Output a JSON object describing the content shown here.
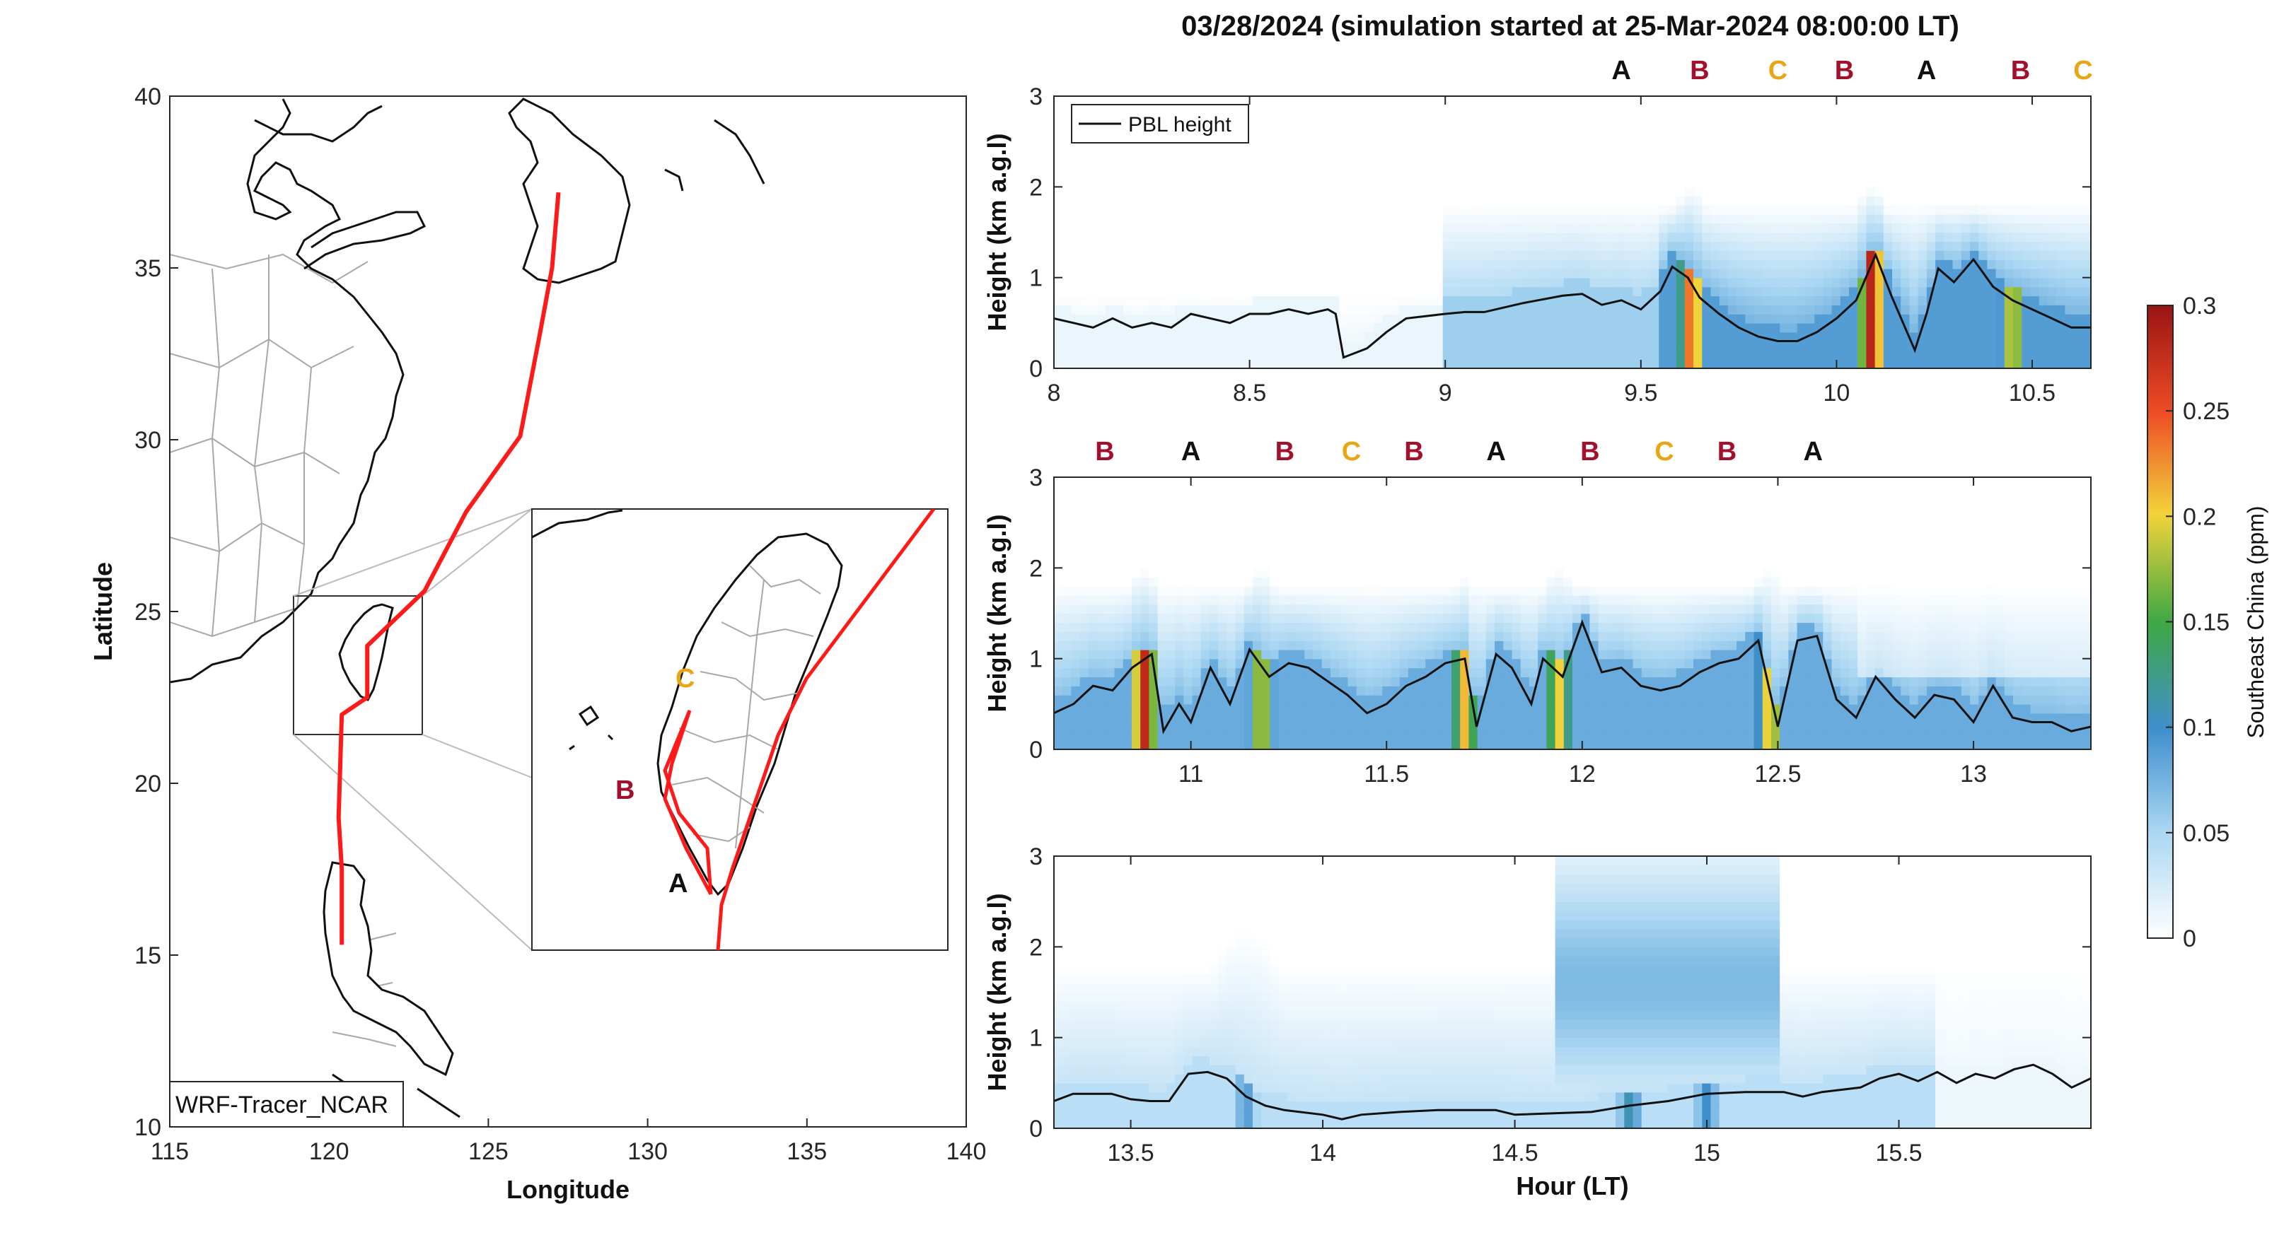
{
  "title": "03/28/2024 (simulation started at 25-Mar-2024 08:00:00 LT)",
  "colors": {
    "track": "#ff1a1a",
    "A": "#111111",
    "B": "#a3102c",
    "C": "#e8a614",
    "pbl": "#111111",
    "land": "#111111",
    "province": "#a0a0a0"
  },
  "map": {
    "xlabel": "Longitude",
    "ylabel": "Latitude",
    "xlim": [
      115,
      140
    ],
    "ylim": [
      10,
      40
    ],
    "xticks": [
      "115",
      "120",
      "125",
      "130",
      "135",
      "140"
    ],
    "yticks": [
      "10",
      "15",
      "20",
      "25",
      "30",
      "35",
      "40"
    ],
    "model_label": "WRF-Tracer_NCAR",
    "track": [
      [
        120.4,
        15.3
      ],
      [
        120.4,
        17.5
      ],
      [
        120.3,
        19.0
      ],
      [
        120.4,
        22.0
      ],
      [
        121.2,
        22.5
      ],
      [
        121.2,
        24.0
      ],
      [
        123.0,
        25.6
      ],
      [
        124.3,
        27.9
      ],
      [
        126.0,
        30.1
      ],
      [
        126.6,
        33.0
      ],
      [
        127.0,
        35.0
      ],
      [
        127.2,
        37.2
      ]
    ],
    "inset_track_south": [
      [
        120.4,
        21.7
      ],
      [
        120.6,
        22.0
      ],
      [
        120.9,
        22.2
      ],
      [
        121.0,
        22.0
      ],
      [
        121.2,
        22.3
      ]
    ],
    "inset_labels": [
      {
        "text": "C",
        "key": "C"
      },
      {
        "text": "B",
        "key": "B"
      },
      {
        "text": "A",
        "key": "A"
      }
    ]
  },
  "chart_data": [
    {
      "type": "heatmap",
      "title": "03/28/2024 (simulation started at 25-Mar-2024 08:00:00 LT)",
      "xlabel": "",
      "ylabel": "Height (km a.g.l)",
      "xlim": [
        8.0,
        10.65
      ],
      "ylim": [
        0,
        3
      ],
      "xticks": [
        "8",
        "8.5",
        "9",
        "9.5",
        "10",
        "10.5"
      ],
      "yticks": [
        "0",
        "1",
        "2",
        "3"
      ],
      "legend": {
        "position": "top-left",
        "entries": [
          "PBL height"
        ]
      },
      "site_markers": [
        {
          "x": 9.45,
          "label": "A"
        },
        {
          "x": 9.65,
          "label": "B"
        },
        {
          "x": 9.85,
          "label": "C"
        },
        {
          "x": 10.02,
          "label": "B"
        },
        {
          "x": 10.23,
          "label": "A"
        },
        {
          "x": 10.47,
          "label": "B"
        },
        {
          "x": 10.63,
          "label": "C"
        }
      ],
      "pbl_height": [
        [
          8.0,
          0.55
        ],
        [
          8.05,
          0.5
        ],
        [
          8.1,
          0.45
        ],
        [
          8.15,
          0.55
        ],
        [
          8.2,
          0.45
        ],
        [
          8.25,
          0.5
        ],
        [
          8.3,
          0.45
        ],
        [
          8.35,
          0.6
        ],
        [
          8.4,
          0.55
        ],
        [
          8.45,
          0.5
        ],
        [
          8.5,
          0.6
        ],
        [
          8.55,
          0.6
        ],
        [
          8.6,
          0.65
        ],
        [
          8.65,
          0.6
        ],
        [
          8.7,
          0.65
        ],
        [
          8.72,
          0.6
        ],
        [
          8.74,
          0.12
        ],
        [
          8.8,
          0.22
        ],
        [
          8.85,
          0.4
        ],
        [
          8.9,
          0.55
        ],
        [
          9.0,
          0.6
        ],
        [
          9.05,
          0.62
        ],
        [
          9.1,
          0.62
        ],
        [
          9.2,
          0.72
        ],
        [
          9.3,
          0.8
        ],
        [
          9.35,
          0.82
        ],
        [
          9.4,
          0.7
        ],
        [
          9.45,
          0.75
        ],
        [
          9.5,
          0.65
        ],
        [
          9.55,
          0.85
        ],
        [
          9.58,
          1.12
        ],
        [
          9.62,
          1.0
        ],
        [
          9.65,
          0.78
        ],
        [
          9.7,
          0.6
        ],
        [
          9.75,
          0.45
        ],
        [
          9.8,
          0.35
        ],
        [
          9.85,
          0.3
        ],
        [
          9.9,
          0.3
        ],
        [
          9.95,
          0.4
        ],
        [
          10.0,
          0.55
        ],
        [
          10.05,
          0.75
        ],
        [
          10.1,
          1.25
        ],
        [
          10.14,
          0.8
        ],
        [
          10.18,
          0.4
        ],
        [
          10.2,
          0.2
        ],
        [
          10.23,
          0.6
        ],
        [
          10.26,
          1.1
        ],
        [
          10.3,
          0.95
        ],
        [
          10.35,
          1.2
        ],
        [
          10.4,
          0.9
        ],
        [
          10.45,
          0.75
        ],
        [
          10.5,
          0.65
        ],
        [
          10.55,
          0.55
        ],
        [
          10.6,
          0.45
        ],
        [
          10.65,
          0.45
        ]
      ],
      "concentration_peaks": [
        {
          "x": 9.63,
          "z": 0.2,
          "top": 2.0
        },
        {
          "x": 10.09,
          "z": 0.24,
          "top": 2.0
        },
        {
          "x": 10.45,
          "z": 0.15,
          "top": 1.8
        }
      ]
    },
    {
      "type": "heatmap",
      "xlabel": "",
      "ylabel": "Height (km a.g.l)",
      "xlim": [
        10.65,
        13.3
      ],
      "ylim": [
        0,
        3
      ],
      "xticks": [
        "11",
        "11.5",
        "12",
        "12.5",
        "13"
      ],
      "yticks": [
        "0",
        "1",
        "2",
        "3"
      ],
      "site_markers": [
        {
          "x": 10.78,
          "label": "B"
        },
        {
          "x": 11.0,
          "label": "A"
        },
        {
          "x": 11.24,
          "label": "B"
        },
        {
          "x": 11.41,
          "label": "C"
        },
        {
          "x": 11.57,
          "label": "B"
        },
        {
          "x": 11.78,
          "label": "A"
        },
        {
          "x": 12.02,
          "label": "B"
        },
        {
          "x": 12.21,
          "label": "C"
        },
        {
          "x": 12.37,
          "label": "B"
        },
        {
          "x": 12.59,
          "label": "A"
        }
      ],
      "pbl_height": [
        [
          10.65,
          0.4
        ],
        [
          10.7,
          0.5
        ],
        [
          10.75,
          0.7
        ],
        [
          10.8,
          0.65
        ],
        [
          10.85,
          0.9
        ],
        [
          10.9,
          1.05
        ],
        [
          10.93,
          0.2
        ],
        [
          10.97,
          0.5
        ],
        [
          11.0,
          0.3
        ],
        [
          11.05,
          0.9
        ],
        [
          11.1,
          0.5
        ],
        [
          11.15,
          1.1
        ],
        [
          11.2,
          0.8
        ],
        [
          11.25,
          0.95
        ],
        [
          11.3,
          0.9
        ],
        [
          11.35,
          0.75
        ],
        [
          11.4,
          0.6
        ],
        [
          11.45,
          0.4
        ],
        [
          11.5,
          0.5
        ],
        [
          11.55,
          0.7
        ],
        [
          11.6,
          0.8
        ],
        [
          11.65,
          0.95
        ],
        [
          11.7,
          1.0
        ],
        [
          11.73,
          0.25
        ],
        [
          11.78,
          1.05
        ],
        [
          11.82,
          0.9
        ],
        [
          11.87,
          0.5
        ],
        [
          11.9,
          1.0
        ],
        [
          11.95,
          0.8
        ],
        [
          12.0,
          1.4
        ],
        [
          12.05,
          0.85
        ],
        [
          12.1,
          0.9
        ],
        [
          12.15,
          0.7
        ],
        [
          12.2,
          0.65
        ],
        [
          12.25,
          0.7
        ],
        [
          12.3,
          0.85
        ],
        [
          12.35,
          0.95
        ],
        [
          12.4,
          1.0
        ],
        [
          12.45,
          1.2
        ],
        [
          12.5,
          0.25
        ],
        [
          12.55,
          1.2
        ],
        [
          12.6,
          1.25
        ],
        [
          12.65,
          0.55
        ],
        [
          12.7,
          0.35
        ],
        [
          12.75,
          0.8
        ],
        [
          12.8,
          0.55
        ],
        [
          12.85,
          0.35
        ],
        [
          12.9,
          0.6
        ],
        [
          12.95,
          0.55
        ],
        [
          13.0,
          0.3
        ],
        [
          13.05,
          0.7
        ],
        [
          13.1,
          0.35
        ],
        [
          13.15,
          0.3
        ],
        [
          13.2,
          0.3
        ],
        [
          13.25,
          0.2
        ],
        [
          13.3,
          0.25
        ]
      ],
      "concentration_peaks": [
        {
          "x": 10.88,
          "z": 0.24,
          "top": 2.0
        },
        {
          "x": 11.18,
          "z": 0.15,
          "top": 2.0
        },
        {
          "x": 11.7,
          "z": 0.17,
          "top": 1.9
        },
        {
          "x": 11.94,
          "z": 0.16,
          "top": 2.0
        },
        {
          "x": 12.48,
          "z": 0.17,
          "top": 2.0
        }
      ]
    },
    {
      "type": "heatmap",
      "xlabel": "Hour (LT)",
      "ylabel": "Height (km a.g.l)",
      "xlim": [
        13.3,
        16.0
      ],
      "ylim": [
        0,
        3
      ],
      "xticks": [
        "13.5",
        "14",
        "14.5",
        "15",
        "15.5"
      ],
      "yticks": [
        "0",
        "1",
        "2",
        "3"
      ],
      "pbl_height": [
        [
          13.3,
          0.3
        ],
        [
          13.35,
          0.38
        ],
        [
          13.45,
          0.38
        ],
        [
          13.5,
          0.32
        ],
        [
          13.55,
          0.3
        ],
        [
          13.6,
          0.3
        ],
        [
          13.65,
          0.6
        ],
        [
          13.7,
          0.62
        ],
        [
          13.75,
          0.55
        ],
        [
          13.8,
          0.35
        ],
        [
          13.85,
          0.25
        ],
        [
          13.9,
          0.2
        ],
        [
          14.0,
          0.15
        ],
        [
          14.05,
          0.1
        ],
        [
          14.1,
          0.15
        ],
        [
          14.2,
          0.18
        ],
        [
          14.3,
          0.2
        ],
        [
          14.45,
          0.2
        ],
        [
          14.5,
          0.15
        ],
        [
          14.7,
          0.18
        ],
        [
          14.8,
          0.25
        ],
        [
          14.9,
          0.3
        ],
        [
          15.0,
          0.38
        ],
        [
          15.1,
          0.4
        ],
        [
          15.2,
          0.4
        ],
        [
          15.25,
          0.35
        ],
        [
          15.3,
          0.4
        ],
        [
          15.4,
          0.45
        ],
        [
          15.45,
          0.55
        ],
        [
          15.5,
          0.6
        ],
        [
          15.55,
          0.52
        ],
        [
          15.6,
          0.62
        ],
        [
          15.65,
          0.5
        ],
        [
          15.7,
          0.6
        ],
        [
          15.75,
          0.55
        ],
        [
          15.8,
          0.65
        ],
        [
          15.85,
          0.7
        ],
        [
          15.9,
          0.6
        ],
        [
          15.95,
          0.45
        ],
        [
          16.0,
          0.55
        ]
      ],
      "concentration_peaks": [
        {
          "x": 13.8,
          "z": 0.07,
          "top": 2.2
        },
        {
          "x": 14.8,
          "z": 0.09,
          "top": 3.0
        },
        {
          "x": 15.0,
          "z": 0.08,
          "top": 2.8
        }
      ]
    }
  ],
  "colorbar": {
    "label": "Southeast China (ppm)",
    "ticks": [
      "0",
      "0.05",
      "0.1",
      "0.15",
      "0.2",
      "0.25",
      "0.3"
    ],
    "range": [
      0,
      0.3
    ]
  }
}
